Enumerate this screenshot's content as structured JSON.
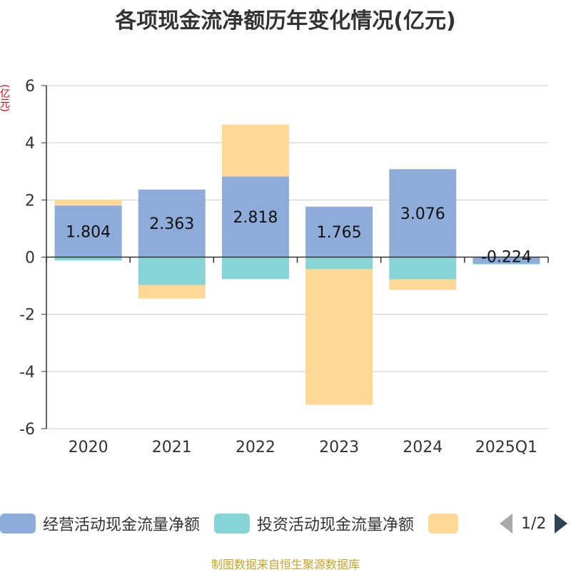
{
  "title": "各项现金流净额历年变化情况(亿元)",
  "y_unit": "(亿元)",
  "source_note": "制图数据来自恒生聚源数据库",
  "legend": {
    "items": [
      {
        "label": "经营活动现金流量净额",
        "color": "#8eacd9"
      },
      {
        "label": "投资活动现金流量净额",
        "color": "#86d4d6"
      },
      {
        "label": "",
        "color": "#fdd897"
      }
    ],
    "page_indicator": "1/2"
  },
  "chart_data": {
    "type": "bar",
    "stacked": true,
    "categories": [
      "2020",
      "2021",
      "2022",
      "2023",
      "2024",
      "2025Q1"
    ],
    "ylim": [
      -6,
      6
    ],
    "yticks": [
      -6,
      -4,
      -2,
      0,
      2,
      4,
      6
    ],
    "grid": true,
    "legend_position": "bottom",
    "series": [
      {
        "name": "经营活动现金流量净额",
        "color": "#8eacd9",
        "values": [
          1.804,
          2.363,
          2.818,
          1.765,
          3.076,
          -0.224
        ],
        "labels": [
          "1.804",
          "2.363",
          "2.818",
          "1.765",
          "3.076",
          "-0.224"
        ]
      },
      {
        "name": "投资活动现金流量净额",
        "color": "#86d4d6",
        "values": [
          -0.12,
          -0.98,
          -0.77,
          -0.42,
          -0.78,
          -0.03
        ]
      },
      {
        "color": "#fdd897",
        "values": [
          0.2,
          -0.47,
          1.82,
          -4.75,
          -0.37,
          0.0
        ]
      }
    ]
  }
}
